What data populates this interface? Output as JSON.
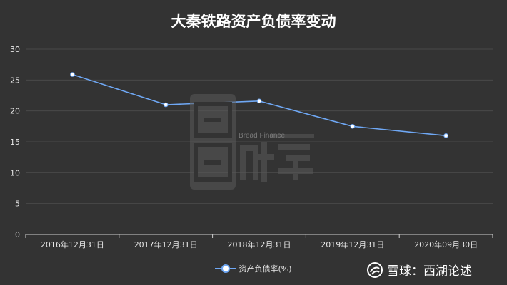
{
  "chart_data": {
    "type": "line",
    "title": "大秦铁路资产负债率变动",
    "categories": [
      "2016年12月31日",
      "2017年12月31日",
      "2018年12月31日",
      "2019年12月31日",
      "2020年09月30日"
    ],
    "series": [
      {
        "name": "资产负债率(%)",
        "values": [
          25.9,
          21.0,
          21.6,
          17.5,
          16.0
        ]
      }
    ],
    "xlabel": "",
    "ylabel": "",
    "ylim": [
      0,
      30
    ],
    "yticks": [
      0,
      5,
      10,
      15,
      20,
      25,
      30
    ],
    "grid": true,
    "legend_position": "bottom-center",
    "colors": {
      "line": "#6fa8f5",
      "background": "#333333",
      "grid": "#4a4a4a",
      "axis_text": "#e6e6e6"
    }
  },
  "watermark": {
    "brand": "Bread Finance",
    "logo_icon": "bread-finance-logo"
  },
  "footer": {
    "text": "雪球：西湖论述",
    "icon": "snowball-icon"
  }
}
